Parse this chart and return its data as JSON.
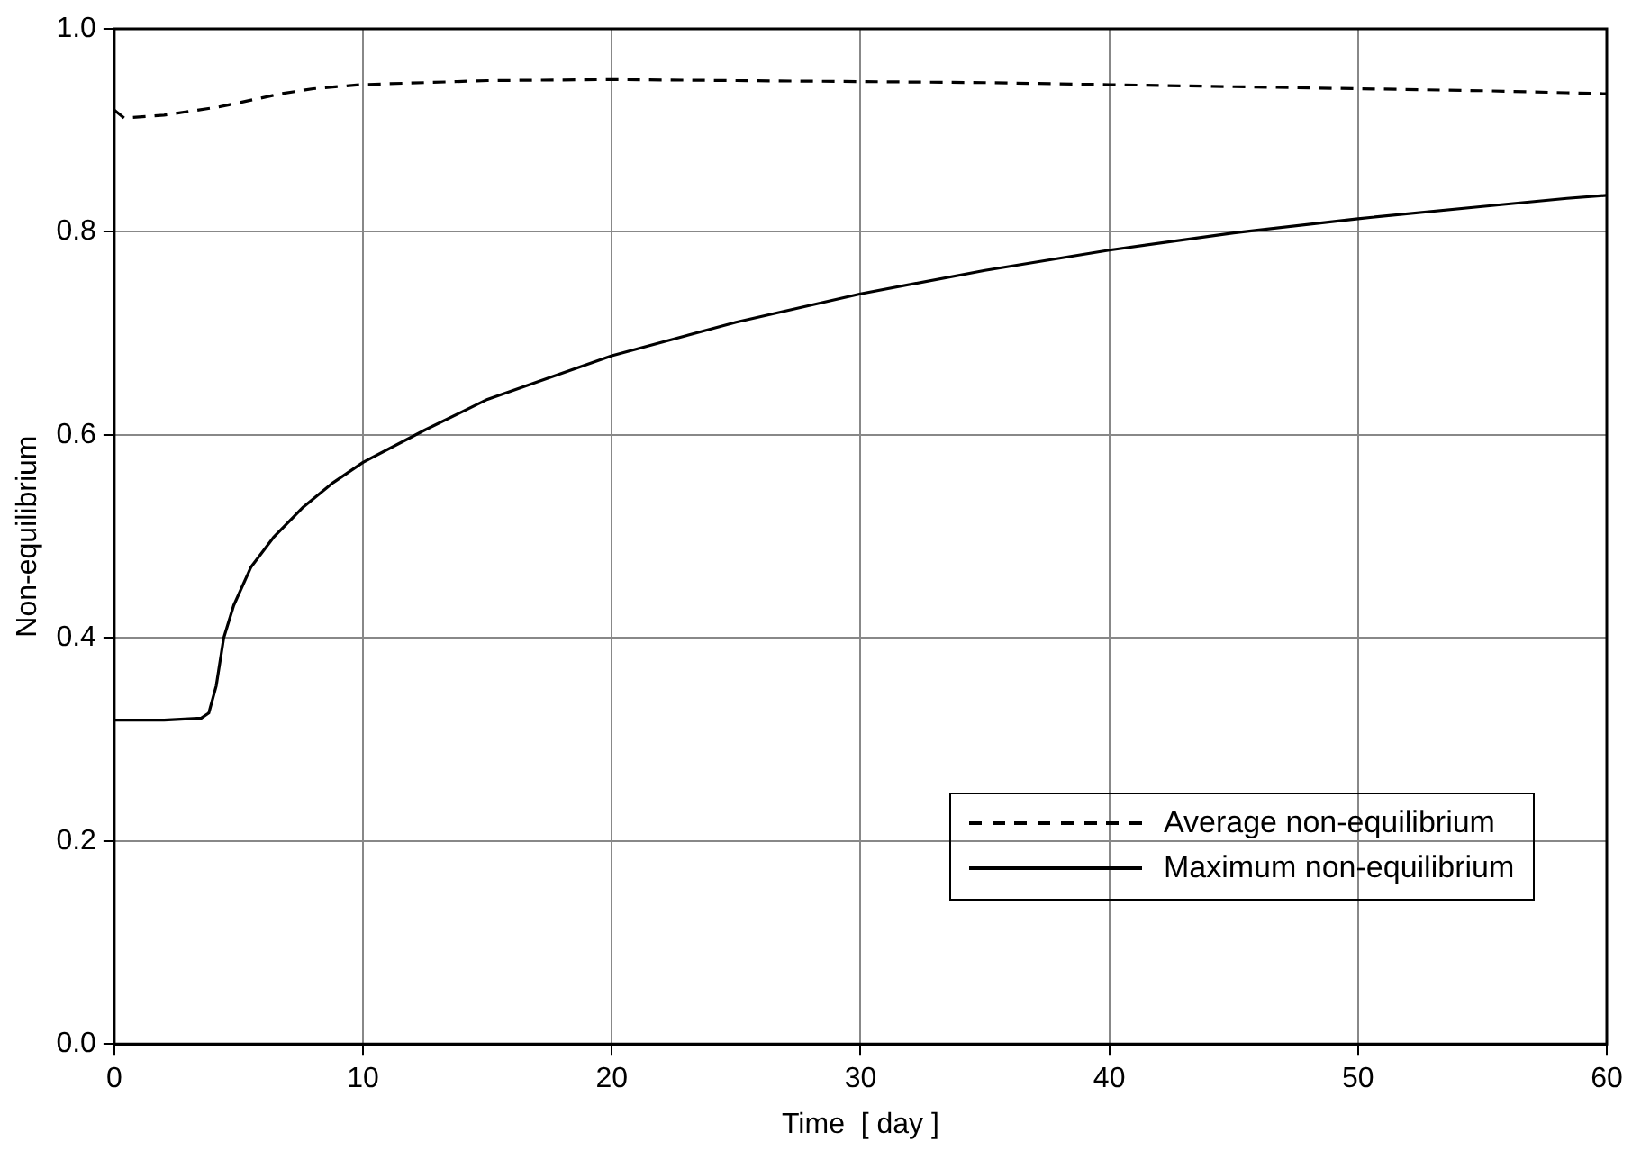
{
  "chart_data": {
    "type": "line",
    "xlabel": "Time  [ day ]",
    "ylabel": "Non-equilibrium",
    "xlim": [
      0,
      60
    ],
    "xticks": [
      0,
      10,
      20,
      30,
      40,
      50,
      60
    ],
    "ylim": [
      0,
      1
    ],
    "yticks": [
      {
        "value": 0,
        "label": "0.0"
      },
      0.2,
      0.4,
      0.6,
      0.8,
      {
        "value": 1,
        "label": "1.0"
      }
    ],
    "grid": true,
    "legend": "bottom right",
    "marker": "none",
    "series": [
      {
        "name": "Average non-equilibrium",
        "color": "#000000",
        "line_style": "dashed",
        "x": [
          0,
          0.4,
          2,
          4.2,
          6.7,
          8,
          9.9,
          15,
          20,
          25,
          30,
          35,
          40,
          45,
          50,
          55,
          58.4,
          60
        ],
        "values": [
          0.92,
          0.912,
          0.915,
          0.923,
          0.936,
          0.941,
          0.945,
          0.949,
          0.95,
          0.949,
          0.948,
          0.947,
          0.945,
          0.943,
          0.941,
          0.939,
          0.937,
          0.936
        ]
      },
      {
        "name": "Maximum non-equilibrium",
        "color": "#000000",
        "line_style": "solid",
        "x": [
          0,
          2,
          3.5,
          3.8,
          4.1,
          4.4,
          4.8,
          5.5,
          6.4,
          7.6,
          8.8,
          10,
          12.5,
          15,
          20,
          25,
          30,
          35,
          40,
          45,
          50,
          55,
          58.4,
          60
        ],
        "values": [
          0.319,
          0.319,
          0.321,
          0.326,
          0.353,
          0.4,
          0.432,
          0.47,
          0.499,
          0.529,
          0.553,
          0.573,
          0.605,
          0.635,
          0.678,
          0.711,
          0.739,
          0.762,
          0.782,
          0.799,
          0.813,
          0.825,
          0.833,
          0.836
        ]
      }
    ]
  }
}
